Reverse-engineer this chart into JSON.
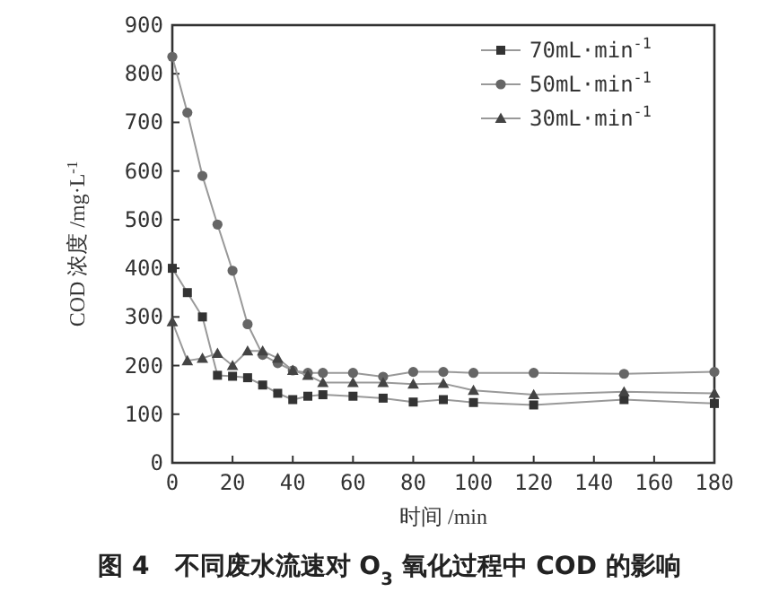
{
  "chart_data": {
    "type": "line",
    "title": "图 4　不同废水流速对 O$_{3}$ 氧化过程中 COD 的影响",
    "xlabel": "时间 /min",
    "ylabel": "COD 浓度 /mg·L$^{-1}$",
    "x": [
      0,
      5,
      10,
      15,
      20,
      25,
      30,
      35,
      40,
      45,
      50,
      60,
      70,
      80,
      90,
      100,
      120,
      150,
      180
    ],
    "series": [
      {
        "name": "70mL·min$^{-1}$",
        "color": "#333333",
        "marker": "square",
        "values": [
          400,
          350,
          300,
          180,
          178,
          175,
          160,
          143,
          130,
          137,
          140,
          137,
          133,
          125,
          130,
          124,
          119,
          130,
          122
        ]
      },
      {
        "name": "50mL·min$^{-1}$",
        "color": "#666666",
        "marker": "circle",
        "values": [
          835,
          720,
          590,
          490,
          395,
          285,
          222,
          205,
          190,
          185,
          185,
          185,
          177,
          187,
          187,
          185,
          185,
          183,
          187
        ]
      },
      {
        "name": "30mL·min$^{-1}$",
        "color": "#444444",
        "marker": "triangle",
        "values": [
          290,
          210,
          215,
          225,
          200,
          230,
          230,
          215,
          190,
          180,
          165,
          165,
          165,
          162,
          163,
          149,
          140,
          146,
          143
        ]
      }
    ],
    "xlim": [
      0,
      180
    ],
    "ylim": [
      0,
      900
    ],
    "xticks": [
      0,
      20,
      40,
      60,
      80,
      100,
      120,
      140,
      160,
      180
    ],
    "yticks": [
      0,
      100,
      200,
      300,
      400,
      500,
      600,
      700,
      800,
      900
    ],
    "legend": "top right",
    "grid": false,
    "line_style": "solid"
  }
}
